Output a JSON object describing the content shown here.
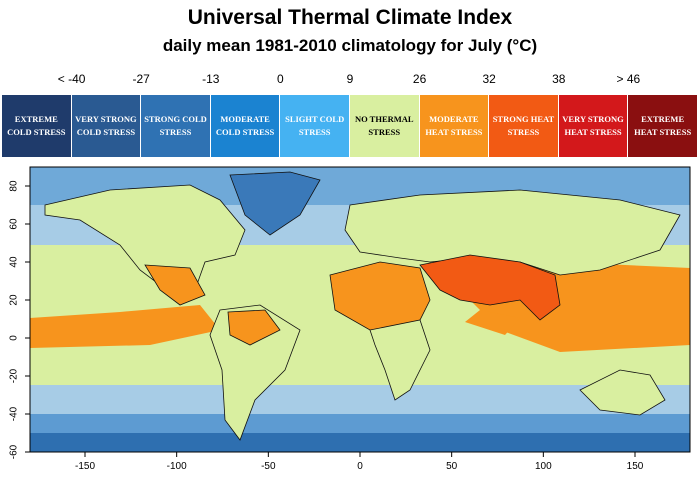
{
  "title": "Universal Thermal Climate Index",
  "subtitle": "daily mean 1981-2010 climatology for July (°C)",
  "legend": {
    "thresholds": [
      "< -40",
      "-27",
      "-13",
      "0",
      "9",
      "26",
      "32",
      "38",
      "> 46"
    ],
    "classes": [
      {
        "label": "EXTREME COLD STRESS",
        "color": "#1f3b6b"
      },
      {
        "label": "VERY STRONG COLD STRESS",
        "color": "#2a5a92"
      },
      {
        "label": "STRONG COLD STRESS",
        "color": "#2f72b3"
      },
      {
        "label": "MODERATE COLD STRESS",
        "color": "#1b83d1"
      },
      {
        "label": "SLIGHT COLD STRESS",
        "color": "#45b2f2"
      },
      {
        "label": "NO THERMAL STRESS",
        "color": "#d9efa0"
      },
      {
        "label": "MODERATE HEAT STRESS",
        "color": "#f7941d"
      },
      {
        "label": "STRONG HEAT STRESS",
        "color": "#f25a14"
      },
      {
        "label": "VERY STRONG HEAT STRESS",
        "color": "#d3181b"
      },
      {
        "label": "EXTREME HEAT STRESS",
        "color": "#8a0f10"
      }
    ]
  },
  "axes": {
    "xlim": [
      -180,
      180
    ],
    "xticks": [
      -150,
      -100,
      -50,
      0,
      50,
      100,
      150
    ],
    "ylim": [
      -60,
      90
    ],
    "yticks": [
      -60,
      -40,
      -20,
      0,
      20,
      40,
      60,
      80
    ]
  }
}
